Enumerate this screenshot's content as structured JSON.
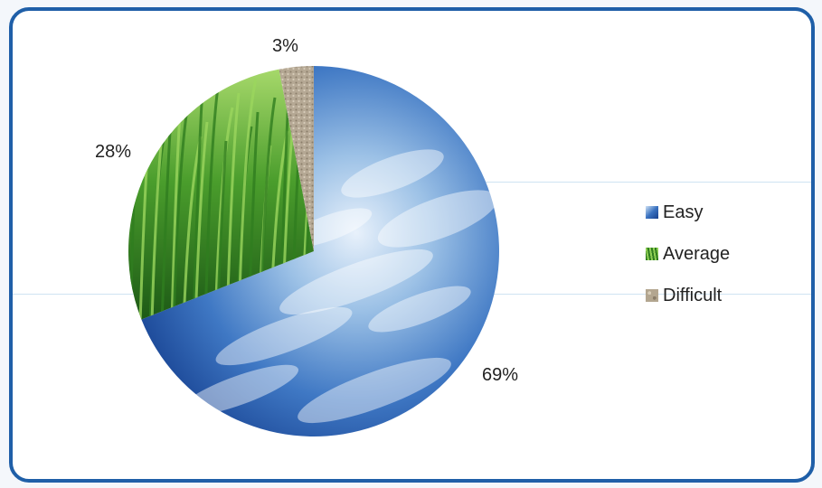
{
  "chart_data": {
    "type": "pie",
    "slices": [
      {
        "label": "Easy",
        "value": 69,
        "value_label": "69%",
        "color": "#2a63b8"
      },
      {
        "label": "Average",
        "value": 28,
        "value_label": "28%",
        "color": "#3c9a2a"
      },
      {
        "label": "Difficult",
        "value": 3,
        "value_label": "3%",
        "color": "#b4a68f"
      }
    ],
    "legend_position": "right",
    "start_angle_deg": 0,
    "direction": "clockwise",
    "textures": {
      "Easy": "sky-clouds",
      "Average": "grass",
      "Difficult": "gravel"
    }
  }
}
